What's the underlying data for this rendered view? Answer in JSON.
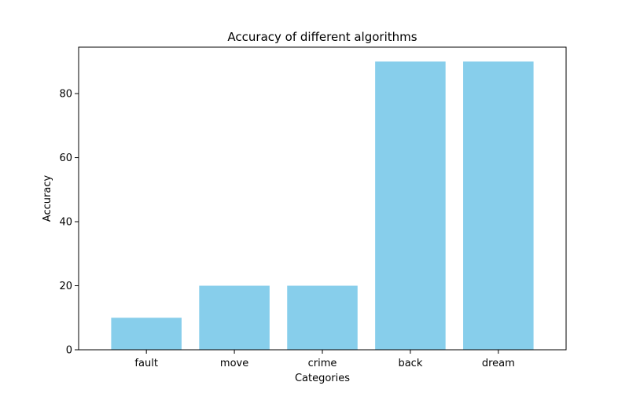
{
  "chart_data": {
    "type": "bar",
    "title": "Accuracy of different algorithms",
    "xlabel": "Categories",
    "ylabel": "Accuracy",
    "categories": [
      "fault",
      "move",
      "crime",
      "back",
      "dream"
    ],
    "values": [
      10,
      20,
      20,
      90,
      90
    ],
    "ylim": [
      0,
      94.5
    ],
    "yticks": [
      0,
      20,
      40,
      60,
      80
    ],
    "bar_color": "#87CEEB",
    "grid": false,
    "legend": "none"
  }
}
